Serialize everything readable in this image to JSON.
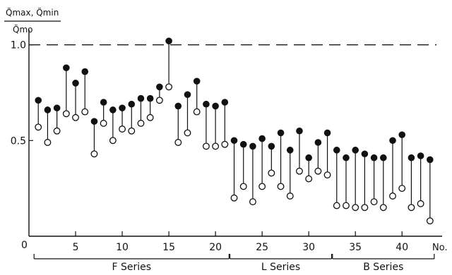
{
  "chart_data": {
    "type": "scatter",
    "subtype": "dumbbell",
    "ylabel_numerator": "Q̃max, Q̃min",
    "ylabel_denominator": "Q̃mo",
    "xlabel": "No.",
    "origin_label": "0",
    "ylim": [
      0,
      1.05
    ],
    "xlim": [
      0,
      44.3
    ],
    "x_ticks": [
      5,
      10,
      15,
      20,
      25,
      30,
      35,
      40
    ],
    "y_ticks": [
      0.5,
      1.0
    ],
    "y_tick_labels": [
      "0.5",
      "1.0"
    ],
    "reference_line": 1.0,
    "grid": false,
    "series": [
      {
        "name": "Q̃max",
        "marker": "filled",
        "x": [
          1,
          2,
          3,
          4,
          5,
          6,
          7,
          8,
          9,
          10,
          11,
          12,
          13,
          14,
          15,
          16,
          17,
          18,
          19,
          20,
          21,
          22,
          23,
          24,
          25,
          26,
          27,
          28,
          29,
          30,
          31,
          32,
          33,
          34,
          35,
          36,
          37,
          38,
          39,
          40,
          41,
          42,
          43
        ],
        "values": [
          0.71,
          0.66,
          0.67,
          0.88,
          0.8,
          0.86,
          0.6,
          0.7,
          0.66,
          0.67,
          0.69,
          0.72,
          0.72,
          0.78,
          1.02,
          0.68,
          0.74,
          0.81,
          0.69,
          0.68,
          0.7,
          0.5,
          0.48,
          0.47,
          0.51,
          0.47,
          0.54,
          0.45,
          0.55,
          0.41,
          0.49,
          0.54,
          0.45,
          0.41,
          0.45,
          0.43,
          0.41,
          0.41,
          0.5,
          0.53,
          0.41,
          0.42,
          0.4
        ]
      },
      {
        "name": "Q̃min",
        "marker": "open",
        "x": [
          1,
          2,
          3,
          4,
          5,
          6,
          7,
          8,
          9,
          10,
          11,
          12,
          13,
          14,
          15,
          16,
          17,
          18,
          19,
          20,
          21,
          22,
          23,
          24,
          25,
          26,
          27,
          28,
          29,
          30,
          31,
          32,
          33,
          34,
          35,
          36,
          37,
          38,
          39,
          40,
          41,
          42,
          43
        ],
        "values": [
          0.57,
          0.49,
          0.55,
          0.64,
          0.62,
          0.65,
          0.43,
          0.59,
          0.5,
          0.56,
          0.55,
          0.59,
          0.62,
          0.71,
          0.78,
          0.49,
          0.54,
          0.65,
          0.47,
          0.47,
          0.48,
          0.2,
          0.26,
          0.18,
          0.26,
          0.33,
          0.26,
          0.21,
          0.34,
          0.3,
          0.34,
          0.32,
          0.16,
          0.16,
          0.15,
          0.15,
          0.18,
          0.15,
          0.21,
          0.25,
          0.15,
          0.17,
          0.08
        ]
      }
    ],
    "groups": [
      {
        "label": "F Series",
        "start": 1,
        "end": 21
      },
      {
        "label": "L Series",
        "start": 22,
        "end": 32
      },
      {
        "label": "B Series",
        "start": 33,
        "end": 43
      }
    ]
  }
}
